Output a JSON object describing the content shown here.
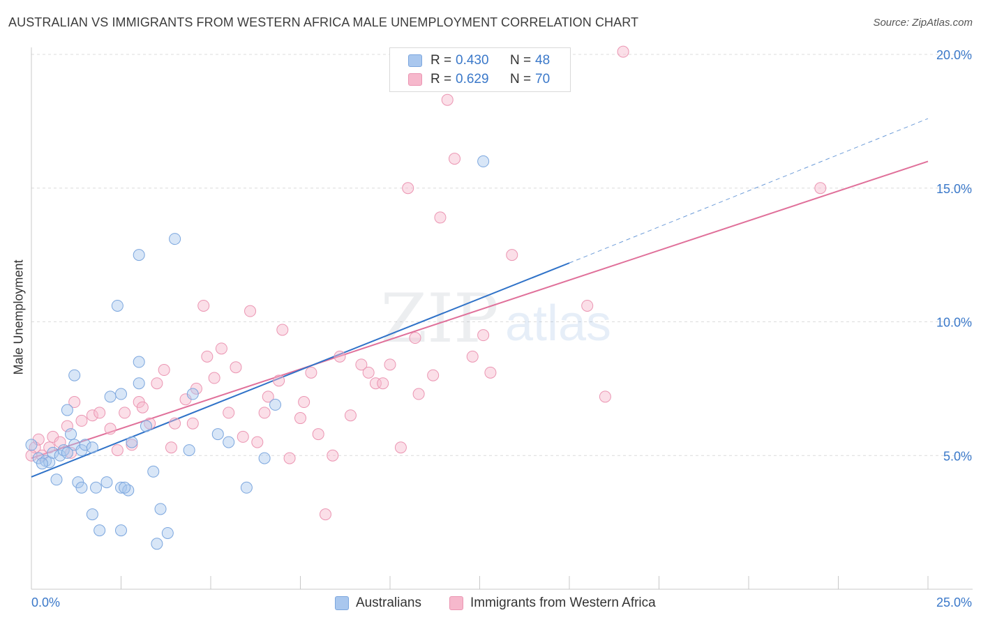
{
  "header": {
    "title": "AUSTRALIAN VS IMMIGRANTS FROM WESTERN AFRICA MALE UNEMPLOYMENT CORRELATION CHART",
    "source": "Source: ZipAtlas.com"
  },
  "legend": {
    "r_label": "R =",
    "n_label": "N =",
    "series": [
      {
        "r": "0.430",
        "n": "48"
      },
      {
        "r": "0.629",
        "n": "70"
      }
    ]
  },
  "bottom_legend": {
    "items": [
      {
        "label": "Australians"
      },
      {
        "label": "Immigrants from Western Africa"
      }
    ]
  },
  "colors": {
    "blue_fill": "#a9c7ee",
    "blue_stroke": "#7ba6de",
    "blue_line": "#2f72c8",
    "pink_fill": "#f6b8cc",
    "pink_stroke": "#eb95b2",
    "pink_line": "#e0709a",
    "tick_label": "#3a78c9",
    "grid": "#dcdcdc"
  },
  "watermark": {
    "zip": "ZIP",
    "atlas": "atlas"
  },
  "chart_data": {
    "type": "scatter",
    "ylabel": "Male Unemployment",
    "xlim": [
      0,
      25
    ],
    "ylim": [
      0,
      20
    ],
    "x_tick_labels": [
      "0.0%",
      "25.0%"
    ],
    "y_ticks": [
      5,
      10,
      15,
      20
    ],
    "y_tick_labels": [
      "5.0%",
      "10.0%",
      "15.0%",
      "20.0%"
    ],
    "grid": true,
    "legend_position": "top-center",
    "series": [
      {
        "name": "Australians",
        "points": [
          [
            0.0,
            5.4
          ],
          [
            0.2,
            4.9
          ],
          [
            0.4,
            4.8
          ],
          [
            0.5,
            4.75
          ],
          [
            0.3,
            4.7
          ],
          [
            0.6,
            5.1
          ],
          [
            0.8,
            5.0
          ],
          [
            0.9,
            5.2
          ],
          [
            1.0,
            5.1
          ],
          [
            1.2,
            5.4
          ],
          [
            1.4,
            5.2
          ],
          [
            1.5,
            5.4
          ],
          [
            1.7,
            5.3
          ],
          [
            1.1,
            5.8
          ],
          [
            1.0,
            6.7
          ],
          [
            1.2,
            8.0
          ],
          [
            2.2,
            7.2
          ],
          [
            2.5,
            7.3
          ],
          [
            3.0,
            7.7
          ],
          [
            3.0,
            8.5
          ],
          [
            3.2,
            6.1
          ],
          [
            2.8,
            5.5
          ],
          [
            1.3,
            4.0
          ],
          [
            0.7,
            4.1
          ],
          [
            1.4,
            3.8
          ],
          [
            1.8,
            3.8
          ],
          [
            2.1,
            4.0
          ],
          [
            2.5,
            3.8
          ],
          [
            2.7,
            3.7
          ],
          [
            2.6,
            3.8
          ],
          [
            1.7,
            2.8
          ],
          [
            1.9,
            2.2
          ],
          [
            2.5,
            2.2
          ],
          [
            3.4,
            4.4
          ],
          [
            3.6,
            3.0
          ],
          [
            3.5,
            1.7
          ],
          [
            3.8,
            2.1
          ],
          [
            4.4,
            5.2
          ],
          [
            5.2,
            5.8
          ],
          [
            5.5,
            5.5
          ],
          [
            6.0,
            3.8
          ],
          [
            6.5,
            4.9
          ],
          [
            6.8,
            6.9
          ],
          [
            4.5,
            7.3
          ],
          [
            2.4,
            10.6
          ],
          [
            3.0,
            12.5
          ],
          [
            4.0,
            13.1
          ],
          [
            12.6,
            16.0
          ]
        ]
      },
      {
        "name": "Immigrants from Western Africa",
        "points": [
          [
            0.1,
            5.3
          ],
          [
            0.3,
            5.0
          ],
          [
            0.5,
            5.3
          ],
          [
            0.6,
            5.7
          ],
          [
            0.8,
            5.5
          ],
          [
            1.0,
            6.1
          ],
          [
            1.1,
            5.1
          ],
          [
            1.4,
            6.3
          ],
          [
            1.2,
            7.0
          ],
          [
            1.7,
            6.5
          ],
          [
            1.9,
            6.6
          ],
          [
            2.2,
            6.0
          ],
          [
            2.4,
            5.2
          ],
          [
            2.6,
            6.6
          ],
          [
            2.8,
            5.4
          ],
          [
            3.0,
            7.0
          ],
          [
            3.1,
            6.8
          ],
          [
            3.3,
            6.2
          ],
          [
            3.5,
            7.7
          ],
          [
            3.7,
            8.2
          ],
          [
            3.9,
            5.3
          ],
          [
            4.0,
            6.2
          ],
          [
            4.3,
            7.1
          ],
          [
            4.5,
            6.2
          ],
          [
            4.6,
            7.5
          ],
          [
            4.8,
            10.6
          ],
          [
            4.9,
            8.7
          ],
          [
            5.1,
            7.9
          ],
          [
            5.3,
            9.0
          ],
          [
            5.5,
            6.6
          ],
          [
            5.7,
            8.3
          ],
          [
            5.9,
            5.7
          ],
          [
            6.1,
            10.4
          ],
          [
            6.3,
            5.5
          ],
          [
            6.5,
            6.6
          ],
          [
            6.6,
            7.2
          ],
          [
            6.9,
            7.8
          ],
          [
            7.0,
            9.7
          ],
          [
            7.2,
            4.9
          ],
          [
            7.5,
            6.4
          ],
          [
            7.6,
            7.0
          ],
          [
            7.8,
            8.1
          ],
          [
            8.0,
            5.8
          ],
          [
            8.2,
            2.8
          ],
          [
            8.4,
            5.0
          ],
          [
            8.6,
            8.7
          ],
          [
            8.9,
            6.5
          ],
          [
            9.2,
            8.4
          ],
          [
            9.4,
            8.1
          ],
          [
            9.6,
            7.7
          ],
          [
            9.8,
            7.7
          ],
          [
            10.0,
            8.4
          ],
          [
            10.3,
            5.3
          ],
          [
            10.5,
            15.0
          ],
          [
            10.7,
            9.4
          ],
          [
            10.8,
            7.3
          ],
          [
            11.2,
            8.0
          ],
          [
            11.4,
            13.9
          ],
          [
            11.6,
            18.3
          ],
          [
            11.8,
            16.1
          ],
          [
            12.3,
            8.7
          ],
          [
            12.6,
            9.5
          ],
          [
            12.8,
            8.1
          ],
          [
            13.4,
            12.5
          ],
          [
            15.5,
            10.6
          ],
          [
            16.0,
            7.2
          ],
          [
            16.5,
            20.1
          ],
          [
            22.0,
            15.0
          ],
          [
            0.0,
            5.0
          ],
          [
            0.2,
            5.6
          ]
        ]
      }
    ],
    "trend_lines": [
      {
        "name": "Australians",
        "x_solid": [
          0,
          15
        ],
        "y_solid": [
          4.2,
          12.2
        ],
        "x_dashed": [
          15,
          25
        ],
        "y_dashed": [
          12.2,
          17.6
        ]
      },
      {
        "name": "Immigrants from Western Africa",
        "x": [
          0,
          25
        ],
        "y": [
          4.9,
          16.0
        ]
      }
    ]
  }
}
